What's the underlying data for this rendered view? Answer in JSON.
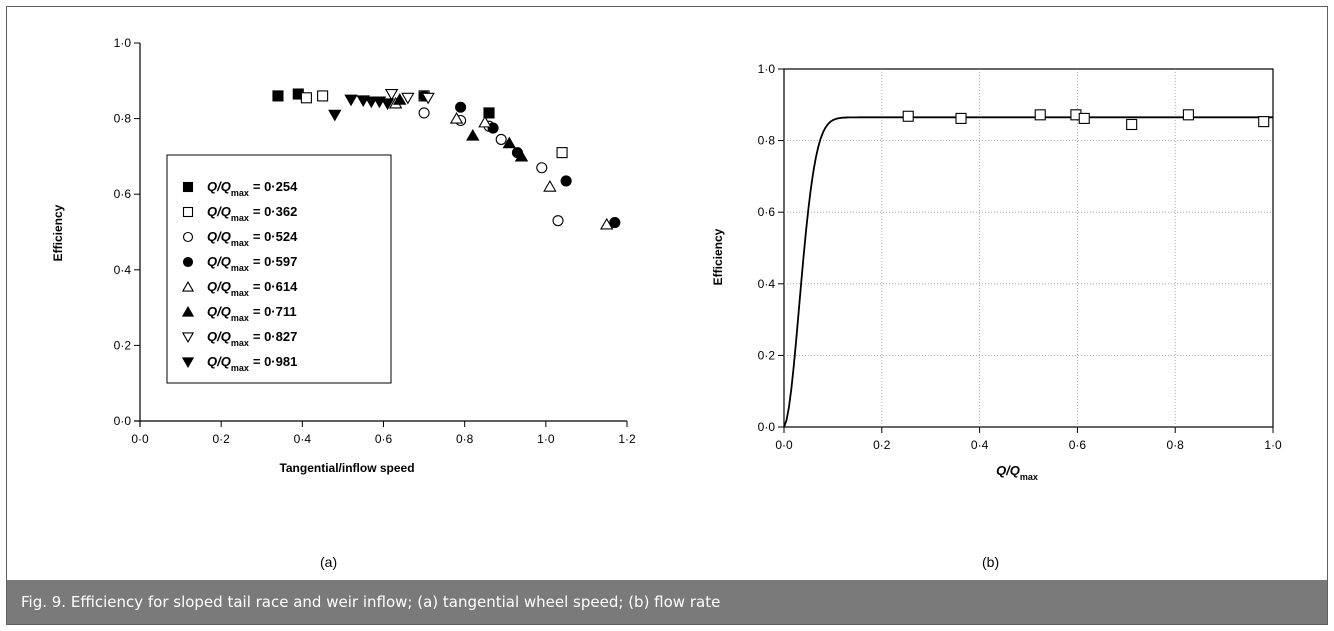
{
  "caption": "Fig. 9. Efficiency for sloped tail race and weir inflow; (a) tangential wheel speed; (b) flow rate",
  "sublabels": {
    "a": "(a)",
    "b": "(b)"
  },
  "chart_data": [
    {
      "type": "scatter",
      "id": "a",
      "title": "",
      "xlabel": "Tangential/inflow speed",
      "ylabel": "Efficiency",
      "xlim": [
        0,
        1.2
      ],
      "ylim": [
        0,
        1.0
      ],
      "xticks": [
        "0·0",
        "0·2",
        "0·4",
        "0·6",
        "0·8",
        "1·0",
        "1·2"
      ],
      "yticks": [
        "0·0",
        "0·2",
        "0·4",
        "0·6",
        "0·8",
        "1·0"
      ],
      "grid": false,
      "legend_position": "left-middle",
      "series": [
        {
          "name": "= 0·254",
          "marker": "square-filled",
          "points": [
            [
              0.34,
              0.86
            ],
            [
              0.39,
              0.865
            ],
            [
              0.86,
              0.815
            ]
          ]
        },
        {
          "name": "= 0·362",
          "marker": "square-open",
          "points": [
            [
              0.41,
              0.855
            ],
            [
              0.45,
              0.86
            ],
            [
              0.7,
              0.86
            ],
            [
              1.04,
              0.71
            ]
          ]
        },
        {
          "name": "= 0·524",
          "marker": "circle-open",
          "points": [
            [
              0.7,
              0.815
            ],
            [
              0.79,
              0.795
            ],
            [
              0.86,
              0.78
            ],
            [
              0.89,
              0.745
            ],
            [
              0.99,
              0.67
            ],
            [
              1.03,
              0.53
            ]
          ]
        },
        {
          "name": "= 0·597",
          "marker": "circle-filled",
          "points": [
            [
              0.7,
              0.86
            ],
            [
              0.79,
              0.83
            ],
            [
              0.87,
              0.775
            ],
            [
              0.93,
              0.71
            ],
            [
              1.05,
              0.635
            ],
            [
              1.17,
              0.525
            ]
          ]
        },
        {
          "name": "= 0·614",
          "marker": "triangle-open",
          "points": [
            [
              0.63,
              0.84
            ],
            [
              0.78,
              0.8
            ],
            [
              0.85,
              0.79
            ],
            [
              1.01,
              0.62
            ],
            [
              1.15,
              0.52
            ]
          ]
        },
        {
          "name": "= 0·711",
          "marker": "triangle-filled",
          "points": [
            [
              0.64,
              0.85
            ],
            [
              0.82,
              0.755
            ],
            [
              0.91,
              0.735
            ],
            [
              0.94,
              0.7
            ]
          ]
        },
        {
          "name": "= 0·827",
          "marker": "triangle-down-open",
          "points": [
            [
              0.62,
              0.865
            ],
            [
              0.66,
              0.855
            ],
            [
              0.71,
              0.855
            ]
          ]
        },
        {
          "name": "= 0·981",
          "marker": "triangle-down-filled",
          "points": [
            [
              0.48,
              0.81
            ],
            [
              0.52,
              0.85
            ],
            [
              0.55,
              0.848
            ],
            [
              0.57,
              0.845
            ],
            [
              0.59,
              0.845
            ],
            [
              0.61,
              0.84
            ]
          ]
        }
      ],
      "legend_prefix": "Q/Q",
      "legend_sub": "max"
    },
    {
      "type": "line",
      "id": "b",
      "title": "",
      "xlabel": "Q/Q",
      "xlabel_sub": "max",
      "ylabel": "Efficiency",
      "xlim": [
        0,
        1.0
      ],
      "ylim": [
        0,
        1.0
      ],
      "xticks": [
        "0·0",
        "0·2",
        "0·4",
        "0·6",
        "0·8",
        "1·0"
      ],
      "yticks": [
        "0·0",
        "0·2",
        "0·4",
        "0·6",
        "0·8",
        "1·0"
      ],
      "grid": true,
      "curve": {
        "plateau": 0.865,
        "rate": 45
      },
      "points": [
        [
          0.254,
          0.868
        ],
        [
          0.362,
          0.862
        ],
        [
          0.524,
          0.872
        ],
        [
          0.597,
          0.872
        ],
        [
          0.614,
          0.862
        ],
        [
          0.711,
          0.845
        ],
        [
          0.827,
          0.872
        ],
        [
          0.981,
          0.853
        ]
      ]
    }
  ],
  "colors": {
    "axis": "#000000",
    "grid": "#9a9a9a",
    "caption_bg": "#7a7a7a",
    "caption_text": "#ffffff",
    "frame": "#5f5f5f"
  }
}
